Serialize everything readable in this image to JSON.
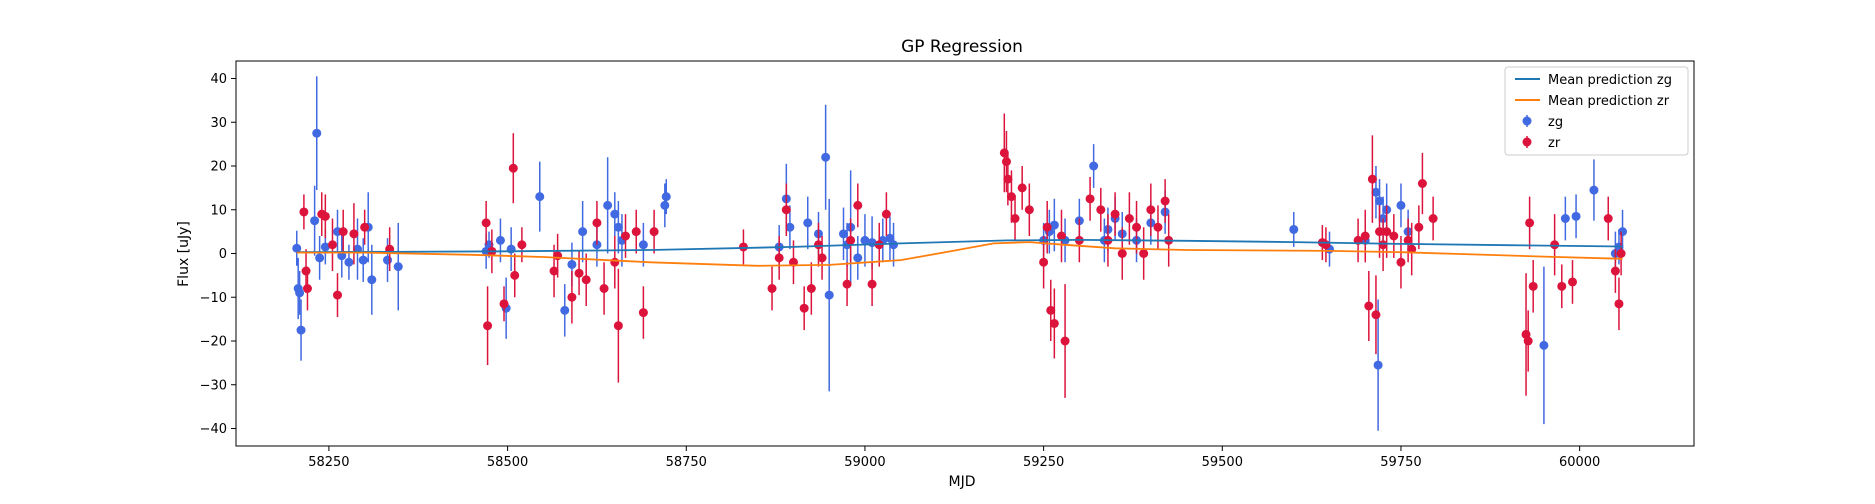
{
  "chart_data": {
    "type": "scatter",
    "title": "GP Regression",
    "xlabel": "MJD",
    "ylabel": "Flux [uJy]",
    "xlim": [
      58120,
      60160
    ],
    "ylim": [
      -44,
      44
    ],
    "xticks": [
      58250,
      58500,
      58750,
      59000,
      59250,
      59500,
      59750,
      60000
    ],
    "yticks": [
      -40,
      -30,
      -20,
      -10,
      0,
      10,
      20,
      30,
      40
    ],
    "grid": false,
    "legend_position": "top-right",
    "colors": {
      "zg": "#4169e1",
      "zr": "#dc143c",
      "mean_zg": "#1f77b4",
      "mean_zr": "#ff7f0e"
    },
    "legend": [
      {
        "label": "Mean prediction zg",
        "kind": "line",
        "color": "#1f77b4"
      },
      {
        "label": "Mean prediction zr",
        "kind": "line",
        "color": "#ff7f0e"
      },
      {
        "label": "zg",
        "kind": "errorbar",
        "color": "#4169e1"
      },
      {
        "label": "zr",
        "kind": "errorbar",
        "color": "#dc143c"
      }
    ],
    "lines": [
      {
        "name": "Mean prediction zg",
        "color": "#1f77b4",
        "x": [
          58205,
          58500,
          58700,
          58900,
          59050,
          59200,
          59300,
          59450,
          59600,
          59750,
          59900,
          60060
        ],
        "y": [
          0.3,
          0.5,
          0.8,
          1.5,
          2.3,
          3.0,
          3.1,
          2.9,
          2.6,
          2.2,
          1.9,
          1.6
        ]
      },
      {
        "name": "Mean prediction zr",
        "color": "#ff7f0e",
        "x": [
          58205,
          58300,
          58450,
          58550,
          58700,
          58850,
          58950,
          59050,
          59120,
          59180,
          59230,
          59280,
          59350,
          59450,
          59650,
          59750,
          59850,
          59950,
          60060
        ],
        "y": [
          0.2,
          0.2,
          -0.3,
          -0.8,
          -2.0,
          -2.8,
          -2.6,
          -1.5,
          0.5,
          2.3,
          2.6,
          2.0,
          1.2,
          0.8,
          0.6,
          0.3,
          -0.2,
          -0.7,
          -1.2
        ]
      }
    ],
    "series": [
      {
        "name": "zg",
        "color": "#4169e1",
        "x": [
          58205,
          58207,
          58209,
          58211,
          58230,
          58233,
          58237,
          58245,
          58262,
          58268,
          58278,
          58290,
          58298,
          58305,
          58310,
          58332,
          58347,
          58470,
          58474,
          58490,
          58498,
          58505,
          58545,
          58580,
          58590,
          58605,
          58625,
          58640,
          58650,
          58655,
          58660,
          58690,
          58720,
          58722,
          58880,
          58890,
          58895,
          58920,
          58935,
          58945,
          58950,
          58970,
          58975,
          58980,
          58990,
          59000,
          59010,
          59025,
          59035,
          59040,
          59250,
          59258,
          59265,
          59280,
          59300,
          59320,
          59335,
          59340,
          59350,
          59360,
          59380,
          59400,
          59420,
          59600,
          59650,
          59700,
          59715,
          59718,
          59720,
          59725,
          59730,
          59750,
          59760,
          59950,
          59980,
          59995,
          60020,
          60050,
          60055,
          60060
        ],
        "y": [
          1.2,
          -8,
          -9,
          -17.5,
          7.5,
          27.5,
          -1,
          1.5,
          5,
          -0.5,
          -2,
          1,
          -1.5,
          6,
          -6,
          -1.5,
          -3,
          0.5,
          2,
          3,
          -12.5,
          1,
          13,
          -13,
          -2.5,
          5,
          2,
          11,
          9,
          6,
          3,
          2,
          11,
          13,
          1.5,
          12.5,
          6,
          7,
          4.5,
          22,
          -9.5,
          4.5,
          2,
          6,
          -1,
          3,
          2.5,
          3,
          3.5,
          2,
          3,
          5,
          6.5,
          3,
          7.5,
          20,
          3,
          5.5,
          8,
          4.5,
          3,
          7,
          9.5,
          5.5,
          1,
          3,
          14,
          -25.5,
          12,
          8,
          10,
          11,
          5,
          -21,
          8,
          8.5,
          14.5,
          0,
          1.5,
          5
        ],
        "err": [
          4,
          7,
          5,
          7,
          8,
          13,
          5,
          4,
          5,
          5,
          4,
          7,
          5,
          8,
          8,
          5,
          10,
          4,
          3,
          5,
          7,
          5,
          8,
          6,
          5,
          7,
          5,
          11,
          5,
          6,
          6,
          5,
          5,
          4,
          5,
          8,
          5,
          6,
          5,
          12,
          22,
          6,
          5,
          13,
          5,
          6,
          6,
          5,
          5,
          5,
          4,
          5,
          6,
          5,
          5,
          5,
          5,
          5,
          5,
          5,
          5,
          5,
          5,
          4,
          4,
          5,
          6,
          15,
          5,
          5,
          6,
          5,
          5,
          18,
          5,
          5,
          7,
          5,
          4,
          5
        ]
      },
      {
        "name": "zr",
        "color": "#dc143c",
        "x": [
          58215,
          58218,
          58220,
          58240,
          58245,
          58255,
          58262,
          58270,
          58285,
          58300,
          58335,
          58470,
          58472,
          58478,
          58495,
          58508,
          58510,
          58520,
          58565,
          58570,
          58590,
          58600,
          58610,
          58625,
          58635,
          58650,
          58655,
          58665,
          58680,
          58690,
          58705,
          58830,
          58870,
          58880,
          58890,
          58900,
          58915,
          58925,
          58935,
          58940,
          58975,
          58980,
          58990,
          59010,
          59020,
          59030,
          59195,
          59198,
          59200,
          59205,
          59210,
          59220,
          59230,
          59250,
          59255,
          59260,
          59265,
          59275,
          59280,
          59300,
          59315,
          59330,
          59340,
          59350,
          59360,
          59370,
          59380,
          59390,
          59400,
          59410,
          59420,
          59425,
          59640,
          59645,
          59690,
          59700,
          59705,
          59710,
          59715,
          59720,
          59725,
          59730,
          59740,
          59750,
          59760,
          59765,
          59775,
          59780,
          59795,
          59925,
          59928,
          59930,
          59935,
          59965,
          59975,
          59990,
          60040,
          60050,
          60055,
          60058
        ],
        "y": [
          9.5,
          -4,
          -8,
          9,
          8.5,
          2,
          -9.5,
          5,
          4.5,
          6,
          1,
          7,
          -16.5,
          0.5,
          -11.5,
          19.5,
          -5,
          2,
          -4,
          -0.5,
          -10,
          -4.5,
          -6,
          7,
          -8,
          -2,
          -16.5,
          4,
          5,
          -13.5,
          5,
          1.5,
          -8,
          -1,
          10,
          -2,
          -12.5,
          -8,
          2,
          -1,
          -7,
          3,
          11,
          -7,
          2,
          9,
          23,
          21,
          17,
          13,
          8,
          15,
          10,
          -2,
          6,
          -13,
          -16,
          4,
          -20,
          3,
          12.5,
          10,
          3,
          9,
          0,
          8,
          6,
          0,
          10,
          6,
          12,
          3,
          2.5,
          2,
          3,
          4,
          -12,
          17,
          -14,
          5,
          2,
          5,
          4,
          -2,
          3,
          1,
          6,
          16,
          8,
          -18.5,
          -20,
          7,
          -7.5,
          2,
          -7.5,
          -6.5,
          8,
          -4,
          -11.5,
          0
        ],
        "err": [
          4,
          5,
          5,
          5,
          5,
          6,
          5,
          5,
          7,
          4,
          5,
          5,
          9,
          5,
          4,
          8,
          5,
          4,
          6,
          5,
          6,
          5,
          6,
          5,
          6,
          6,
          13,
          5,
          5,
          6,
          5,
          4,
          5,
          5,
          6,
          5,
          5,
          6,
          5,
          5,
          5,
          5,
          5,
          5,
          5,
          5,
          9,
          7,
          6,
          6,
          5,
          5,
          6,
          6,
          6,
          7,
          8,
          6,
          13,
          5,
          5,
          5,
          6,
          5,
          6,
          6,
          6,
          6,
          6,
          5,
          5,
          6,
          4,
          4,
          5,
          6,
          8,
          10,
          9,
          6,
          6,
          6,
          5,
          6,
          5,
          6,
          5,
          7,
          5,
          14,
          7,
          6,
          6,
          7,
          5,
          5,
          5,
          5,
          6,
          5
        ]
      }
    ]
  }
}
